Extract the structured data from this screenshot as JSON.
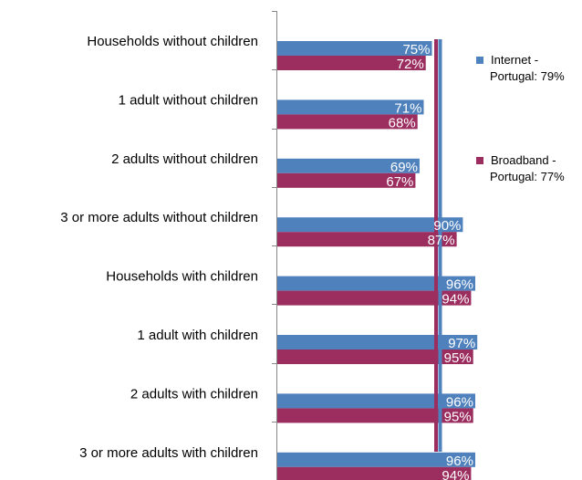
{
  "chart_data": {
    "type": "bar",
    "orientation": "horizontal",
    "categories": [
      "Households without children",
      "1 adult without children",
      "2 adults without children",
      "3 or more adults without children",
      "Households with children",
      "1 adult with children",
      "2 adults with children",
      "3 or more adults with children"
    ],
    "series": [
      {
        "name": "Internet",
        "color": "#4f81bd",
        "values": [
          75,
          71,
          69,
          90,
          96,
          97,
          96,
          96
        ],
        "labels": [
          "75%",
          "71%",
          "69%",
          "90%",
          "96%",
          "97%",
          "96%",
          "96%"
        ]
      },
      {
        "name": "Broadband",
        "color": "#9b2d5f",
        "values": [
          72,
          68,
          67,
          87,
          94,
          95,
          95,
          94
        ],
        "labels": [
          "72%",
          "68%",
          "67%",
          "87%",
          "94%",
          "95%",
          "95%",
          "94%"
        ]
      }
    ],
    "reference_lines": [
      {
        "name": "Internet - Portugal: 79%",
        "value": 79,
        "color": "#4f81bd",
        "legend_lines": [
          "Internet -",
          "Portugal: 79%"
        ]
      },
      {
        "name": "Broadband - Portugal: 77%",
        "value": 77,
        "color": "#9b2d5f",
        "legend_lines": [
          "Broadband -",
          "Portugal: 77%"
        ]
      }
    ],
    "xlim": [
      0,
      100
    ],
    "grid": false,
    "legend_position": "right"
  }
}
